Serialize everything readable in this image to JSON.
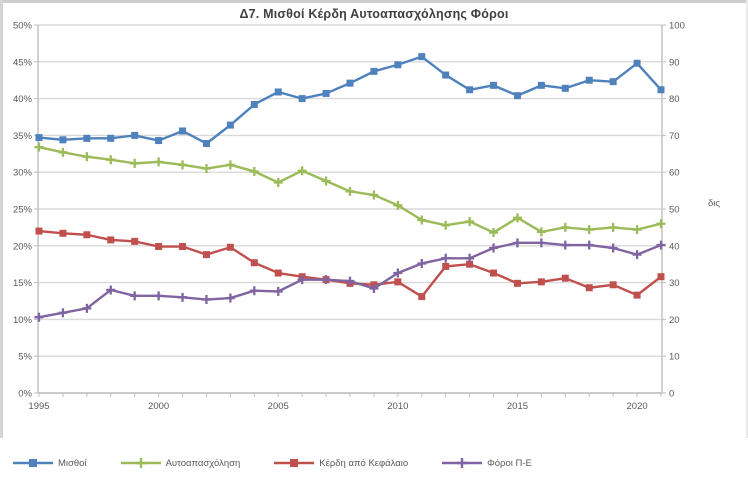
{
  "window": {
    "background": "#ffffff",
    "frame_color": "#cdcdcd"
  },
  "chart_data": {
    "type": "line",
    "title": "Δ7. Μισθοί Κέρδη Αυτοαπασχόλησης Φόροι",
    "x": [
      1995,
      1996,
      1997,
      1998,
      1999,
      2000,
      2001,
      2002,
      2003,
      2004,
      2005,
      2006,
      2007,
      2008,
      2009,
      2010,
      2011,
      2012,
      2013,
      2014,
      2015,
      2016,
      2017,
      2018,
      2019,
      2020,
      2021
    ],
    "series": [
      {
        "name": "Μισθοί",
        "color": "#4f81bd",
        "marker": "square",
        "values": [
          34.7,
          34.4,
          34.6,
          34.6,
          35.0,
          34.3,
          35.6,
          33.9,
          36.4,
          39.2,
          40.9,
          40.0,
          40.7,
          42.1,
          43.7,
          44.6,
          45.7,
          43.2,
          41.2,
          41.8,
          40.4,
          41.8,
          41.4,
          42.5,
          42.3,
          44.8,
          41.2
        ]
      },
      {
        "name": "Αυτοαπασχόληση",
        "color": "#9bbb59",
        "marker": "plus",
        "values": [
          33.4,
          32.7,
          32.1,
          31.7,
          31.2,
          31.4,
          31.0,
          30.5,
          31.0,
          30.1,
          28.6,
          30.2,
          28.8,
          27.4,
          26.9,
          25.5,
          23.5,
          22.8,
          23.3,
          21.8,
          23.8,
          21.9,
          22.5,
          22.2,
          22.5,
          22.2,
          23.0
        ]
      },
      {
        "name": "Κέρδη από Κεφάλαιο",
        "color": "#c0504d",
        "marker": "square",
        "values": [
          22.0,
          21.7,
          21.5,
          20.8,
          20.6,
          19.9,
          19.9,
          18.8,
          19.8,
          17.7,
          16.3,
          15.8,
          15.4,
          14.9,
          14.7,
          15.1,
          13.1,
          17.2,
          17.5,
          16.3,
          14.9,
          15.1,
          15.6,
          14.3,
          14.7,
          13.3,
          15.8
        ]
      },
      {
        "name": "Φόροι Π-Ε",
        "color": "#8064a2",
        "marker": "plus",
        "values": [
          10.3,
          10.9,
          11.5,
          14.0,
          13.2,
          13.2,
          13.0,
          12.7,
          12.9,
          13.9,
          13.8,
          15.4,
          15.4,
          15.2,
          14.2,
          16.3,
          17.6,
          18.3,
          18.3,
          19.7,
          20.4,
          20.4,
          20.1,
          20.1,
          19.7,
          18.8,
          20.1
        ]
      }
    ],
    "left_axis": {
      "min": 0,
      "max": 50,
      "step": 5,
      "ticks": [
        "0%",
        "5%",
        "10%",
        "15%",
        "20%",
        "25%",
        "30%",
        "35%",
        "40%",
        "45%",
        "50%"
      ]
    },
    "right_axis": {
      "min": 0,
      "max": 100,
      "step": 10,
      "ticks": [
        "0",
        "10",
        "20",
        "30",
        "40",
        "50",
        "60",
        "70",
        "80",
        "90",
        "100"
      ],
      "title": "δις"
    },
    "x_axis": {
      "labeled_years": [
        1995,
        2000,
        2005,
        2010,
        2015,
        2020
      ]
    },
    "grid": true,
    "legend_position": "bottom",
    "colors": {
      "gridline": "#d9d9d9",
      "axis": "#bfbfbf",
      "tick_text": "#595959",
      "title_text": "#404040"
    }
  }
}
